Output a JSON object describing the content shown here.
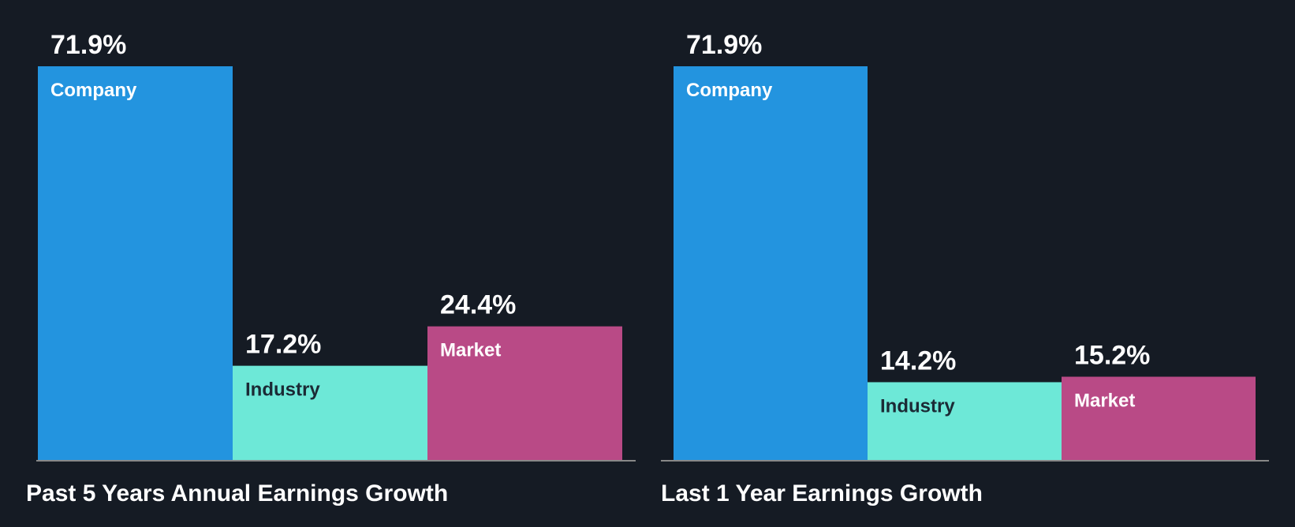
{
  "chart_data": [
    {
      "type": "bar",
      "title": "Past 5 Years Annual Earnings Growth",
      "categories": [
        "Company",
        "Industry",
        "Market"
      ],
      "values": [
        71.9,
        17.2,
        24.4
      ],
      "value_labels": [
        "71.9%",
        "17.2%",
        "24.4%"
      ],
      "colors": [
        "#2394df",
        "#6de8d7",
        "#b94a86"
      ],
      "label_colors": [
        "#ffffff",
        "#1b2a35",
        "#ffffff"
      ],
      "ylim": [
        0,
        71.9
      ],
      "xlabel": "",
      "ylabel": ""
    },
    {
      "type": "bar",
      "title": "Last 1 Year Earnings Growth",
      "categories": [
        "Company",
        "Industry",
        "Market"
      ],
      "values": [
        71.9,
        14.2,
        15.2
      ],
      "value_labels": [
        "71.9%",
        "14.2%",
        "15.2%"
      ],
      "colors": [
        "#2394df",
        "#6de8d7",
        "#b94a86"
      ],
      "label_colors": [
        "#ffffff",
        "#1b2a35",
        "#ffffff"
      ],
      "ylim": [
        0,
        71.9
      ],
      "xlabel": "",
      "ylabel": ""
    }
  ],
  "style": {
    "background": "#151b24",
    "baseline_color": "#888888"
  }
}
